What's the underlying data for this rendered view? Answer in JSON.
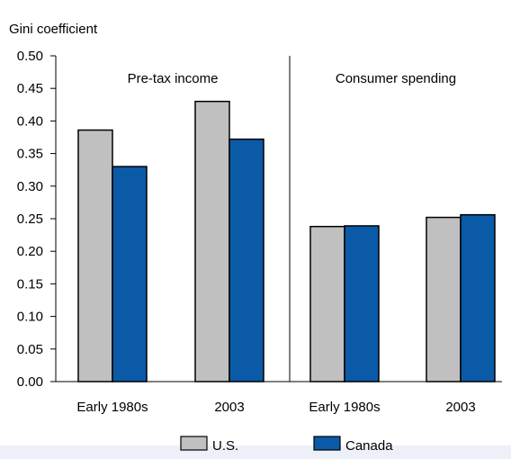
{
  "chart_data": {
    "type": "bar",
    "ylabel": "Gini coefficient",
    "ylim": [
      0,
      0.5
    ],
    "yticks": [
      "0.00",
      "0.05",
      "0.10",
      "0.15",
      "0.20",
      "0.25",
      "0.30",
      "0.35",
      "0.40",
      "0.45",
      "0.50"
    ],
    "panels": [
      {
        "title": "Pre-tax income",
        "categories": [
          "Early 1980s",
          "2003"
        ]
      },
      {
        "title": "Consumer spending",
        "categories": [
          "Early 1980s",
          "2003"
        ]
      }
    ],
    "categories": [
      "Early 1980s",
      "2003",
      "Early 1980s",
      "2003"
    ],
    "series": [
      {
        "name": "U.S.",
        "color": "#c0c0c0",
        "values": [
          0.386,
          0.43,
          0.238,
          0.252
        ]
      },
      {
        "name": "Canada",
        "color": "#0b5aa8",
        "values": [
          0.33,
          0.372,
          0.239,
          0.256
        ]
      }
    ],
    "grid": false,
    "legend_position": "bottom-center"
  }
}
